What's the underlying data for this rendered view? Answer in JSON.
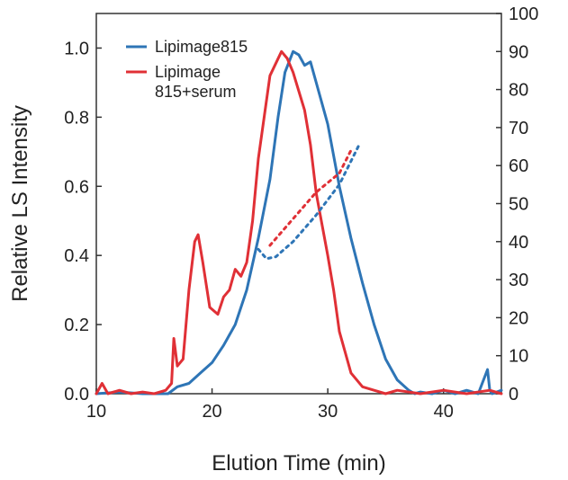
{
  "chart_data": {
    "type": "line",
    "xlabel": "Elution Time (min)",
    "ylabel": "Relative LS Intensity",
    "xlim": [
      10,
      45
    ],
    "ylim": [
      0,
      1.1
    ],
    "y2lim": [
      0,
      100
    ],
    "x_ticks": [
      "10",
      "20",
      "30",
      "40"
    ],
    "x_tick_values": [
      10,
      20,
      30,
      40
    ],
    "y_ticks": [
      "0.0",
      "0.2",
      "0.4",
      "0.6",
      "0.8",
      "1.0"
    ],
    "y_tick_values": [
      0,
      0.2,
      0.4,
      0.6,
      0.8,
      1.0
    ],
    "y2_ticks": [
      "0",
      "10",
      "20",
      "30",
      "40",
      "50",
      "60",
      "70",
      "80",
      "90",
      "100"
    ],
    "y2_tick_values": [
      0,
      10,
      20,
      30,
      40,
      50,
      60,
      70,
      80,
      90,
      100
    ],
    "legend_position": "top-left",
    "series": [
      {
        "name": "Lipimage815",
        "color": "#2e75b6",
        "axis": "left",
        "style": "solid",
        "x": [
          10,
          12,
          14,
          15.5,
          16.2,
          17,
          18,
          19,
          20,
          21,
          22,
          23,
          24,
          25,
          25.7,
          26.3,
          27,
          27.5,
          28,
          28.5,
          29,
          30,
          31,
          32,
          33,
          34,
          35,
          36,
          37,
          37.5,
          38,
          39,
          40,
          41,
          42,
          43,
          43.8,
          44,
          44.2,
          45
        ],
        "y": [
          0,
          0.005,
          0,
          0,
          0,
          0.02,
          0.03,
          0.06,
          0.09,
          0.14,
          0.2,
          0.3,
          0.45,
          0.62,
          0.8,
          0.93,
          0.99,
          0.98,
          0.95,
          0.96,
          0.9,
          0.78,
          0.6,
          0.45,
          0.32,
          0.2,
          0.1,
          0.04,
          0.01,
          0,
          0.005,
          0,
          0.01,
          0,
          0.01,
          0,
          0.07,
          0.01,
          0,
          0.01
        ]
      },
      {
        "name": "Lipimage 815+serum",
        "name_lines": [
          "Lipimage",
          "815+serum"
        ],
        "color": "#e03036",
        "axis": "left",
        "style": "solid",
        "x": [
          10,
          10.5,
          11,
          12,
          13,
          14,
          15,
          16,
          16.5,
          16.7,
          17,
          17.5,
          18,
          18.5,
          18.8,
          19.2,
          19.8,
          20.5,
          21,
          21.5,
          22,
          22.5,
          23,
          23.5,
          24,
          25,
          26,
          26.5,
          27,
          28,
          28.5,
          29,
          30,
          30.5,
          31,
          32,
          33,
          34,
          35,
          36,
          38,
          40,
          42,
          44,
          45
        ],
        "y": [
          0,
          0.03,
          0,
          0.01,
          0,
          0.005,
          0,
          0.01,
          0.03,
          0.16,
          0.08,
          0.1,
          0.3,
          0.44,
          0.46,
          0.38,
          0.25,
          0.23,
          0.28,
          0.3,
          0.36,
          0.34,
          0.38,
          0.5,
          0.68,
          0.92,
          0.99,
          0.97,
          0.93,
          0.82,
          0.72,
          0.58,
          0.4,
          0.3,
          0.18,
          0.06,
          0.02,
          0.01,
          0,
          0.01,
          0,
          0.01,
          0,
          0.01,
          0
        ]
      },
      {
        "name": "",
        "color": "#2e75b6",
        "axis": "right",
        "style": "dotted",
        "x": [
          24,
          24.7,
          25.5,
          27,
          29,
          31,
          32.8
        ],
        "y": [
          38,
          35.5,
          36,
          40,
          47,
          55,
          66
        ]
      },
      {
        "name": "",
        "color": "#e03036",
        "axis": "right",
        "style": "dotted",
        "x": [
          25,
          27,
          29,
          31,
          32
        ],
        "y": [
          39,
          46,
          53,
          58,
          64
        ]
      }
    ]
  }
}
